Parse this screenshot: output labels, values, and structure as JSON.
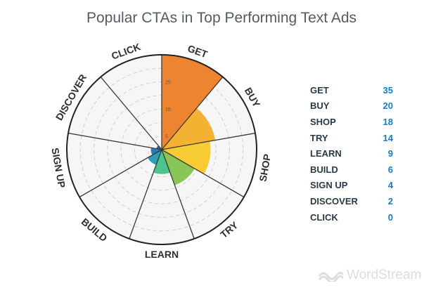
{
  "chart_data": {
    "type": "polar-area",
    "title": "Popular CTAs in Top Performing Text Ads",
    "categories": [
      "GET",
      "BUY",
      "SHOP",
      "TRY",
      "LEARN",
      "BUILD",
      "SIGN UP",
      "DISCOVER",
      "CLICK"
    ],
    "values": [
      35,
      20,
      18,
      14,
      9,
      6,
      4,
      2,
      0
    ],
    "colors": [
      "#ee8330",
      "#f4b233",
      "#f6cb34",
      "#88c657",
      "#4dc48c",
      "#2e9cb2",
      "#2b7ab8",
      "#2a63a6",
      "#2a5596"
    ],
    "radial_ticks": [
      "5",
      "15",
      "25"
    ],
    "rlim": [
      0,
      35
    ]
  },
  "brand": {
    "name": "WordStream"
  }
}
